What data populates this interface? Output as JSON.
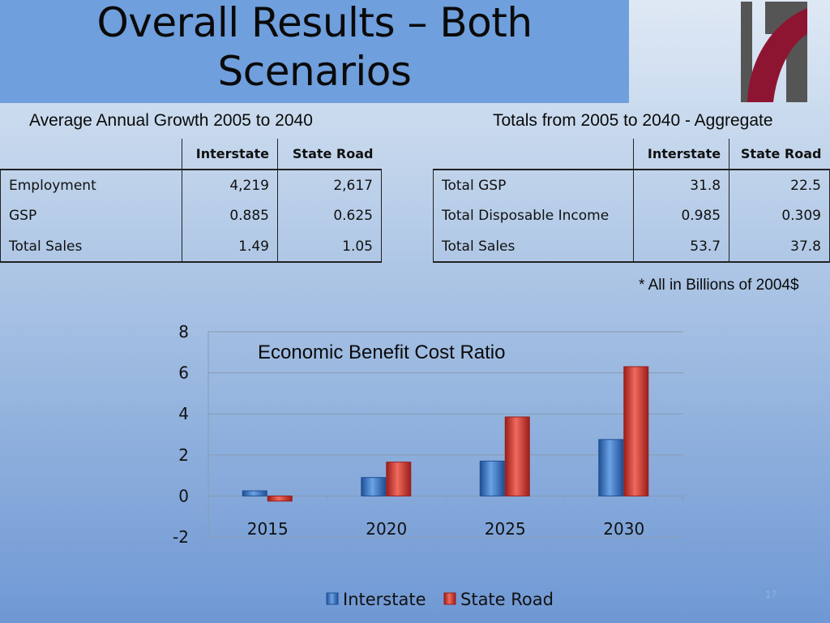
{
  "slide": {
    "title_line1": "Overall Results – Both",
    "title_line2": "Scenarios",
    "page_number": "17",
    "footnote": "* All in Billions of 2004$"
  },
  "left_table": {
    "caption": "Average Annual Growth 2005 to 2040",
    "headers": [
      "",
      "Interstate",
      "State Road"
    ],
    "rows": [
      {
        "label": "Employment",
        "interstate": "4,219",
        "state_road": "2,617"
      },
      {
        "label": "GSP",
        "interstate": "0.885",
        "state_road": "0.625"
      },
      {
        "label": "Total Sales",
        "interstate": "1.49",
        "state_road": "1.05"
      }
    ]
  },
  "right_table": {
    "caption": "Totals from 2005 to 2040 - Aggregate",
    "headers": [
      "",
      "Interstate",
      "State Road"
    ],
    "rows": [
      {
        "label": "Total GSP",
        "interstate": "31.8",
        "state_road": "22.5"
      },
      {
        "label": "Total Disposable Income",
        "interstate": "0.985",
        "state_road": "0.309"
      },
      {
        "label": "Total Sales",
        "interstate": "53.7",
        "state_road": "37.8"
      }
    ]
  },
  "colors": {
    "interstate": "#3a78c8",
    "state_road": "#d83a35",
    "logo_red": "#8e1532",
    "logo_gray": "#555555"
  },
  "chart_data": {
    "type": "bar",
    "title": "Economic Benefit Cost Ratio",
    "categories": [
      "2015",
      "2020",
      "2025",
      "2030"
    ],
    "series": [
      {
        "name": "Interstate",
        "values": [
          0.25,
          0.9,
          1.7,
          2.75
        ]
      },
      {
        "name": "State Road",
        "values": [
          -0.25,
          1.65,
          3.85,
          6.3
        ]
      }
    ],
    "ylim": [
      -2,
      8
    ],
    "yticks": [
      "8",
      "6",
      "4",
      "2",
      "0",
      "-2"
    ],
    "ytick_values": [
      8,
      6,
      4,
      2,
      0,
      -2
    ],
    "grid": true,
    "legend_position": "bottom"
  }
}
